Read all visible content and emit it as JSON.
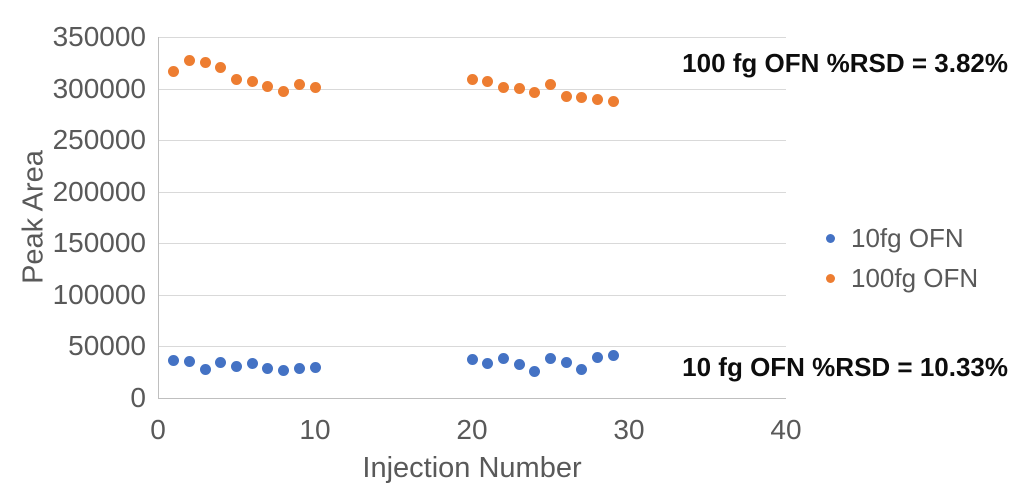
{
  "chart_data": {
    "type": "scatter",
    "title": "",
    "xlabel": "Injection Number",
    "ylabel": "Peak Area",
    "xlim": [
      0,
      40
    ],
    "ylim": [
      0,
      350000
    ],
    "x_ticks": [
      0,
      10,
      20,
      30,
      40
    ],
    "y_ticks": [
      0,
      50000,
      100000,
      150000,
      200000,
      250000,
      300000,
      350000
    ],
    "grid": "horizontal",
    "legend_position": "right",
    "series": [
      {
        "name": "10fg OFN",
        "color": "#4472C4",
        "points": [
          [
            1,
            36000
          ],
          [
            2,
            35000
          ],
          [
            3,
            28000
          ],
          [
            4,
            34000
          ],
          [
            5,
            31000
          ],
          [
            6,
            33000
          ],
          [
            7,
            29000
          ],
          [
            8,
            27000
          ],
          [
            9,
            29000
          ],
          [
            10,
            30000
          ],
          [
            20,
            37000
          ],
          [
            21,
            33000
          ],
          [
            22,
            38000
          ],
          [
            23,
            32000
          ],
          [
            24,
            26000
          ],
          [
            25,
            38000
          ],
          [
            26,
            34000
          ],
          [
            27,
            28000
          ],
          [
            28,
            39000
          ],
          [
            29,
            41000
          ]
        ]
      },
      {
        "name": "100fg OFN",
        "color": "#ED7D31",
        "points": [
          [
            1,
            317000
          ],
          [
            2,
            327000
          ],
          [
            3,
            325000
          ],
          [
            4,
            320000
          ],
          [
            5,
            309000
          ],
          [
            6,
            307000
          ],
          [
            7,
            302000
          ],
          [
            8,
            297000
          ],
          [
            9,
            304000
          ],
          [
            10,
            301000
          ],
          [
            20,
            309000
          ],
          [
            21,
            307000
          ],
          [
            22,
            301000
          ],
          [
            23,
            300000
          ],
          [
            24,
            296000
          ],
          [
            25,
            304000
          ],
          [
            26,
            292000
          ],
          [
            27,
            291000
          ],
          [
            28,
            289000
          ],
          [
            29,
            287000
          ]
        ]
      }
    ],
    "annotations": [
      {
        "text": "100 fg OFN %RSD = 3.82%"
      },
      {
        "text": "10 fg OFN %RSD = 10.33%"
      }
    ],
    "colors": {
      "gridline": "#d9d9d9",
      "axis_line": "#bfbfbf",
      "tick_text": "#595959",
      "annotation_text": "#0d0d0d",
      "background": "#ffffff"
    }
  }
}
